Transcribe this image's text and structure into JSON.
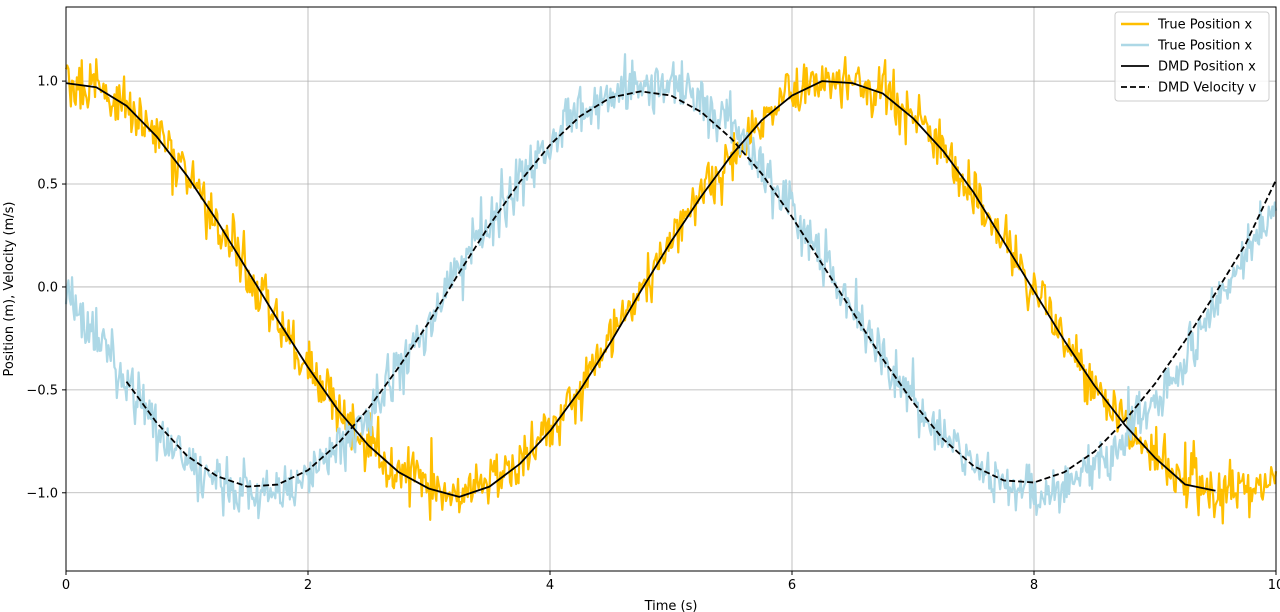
{
  "chart_data": {
    "type": "line",
    "title": "",
    "xlabel": "Time (s)",
    "ylabel": "Position (m), Velocity (m/s)",
    "xlim": [
      0,
      10
    ],
    "ylim": [
      -1.38,
      1.36
    ],
    "xticks": [
      0,
      2,
      4,
      6,
      8,
      10
    ],
    "yticks": [
      -1.0,
      -0.5,
      0.0,
      0.5,
      1.0
    ],
    "xtick_labels": [
      "0",
      "2",
      "4",
      "6",
      "8",
      "10"
    ],
    "ytick_labels": [
      "−1.0",
      "−0.5",
      "0.0",
      "0.5",
      "1.0"
    ],
    "grid": true,
    "legend_position": "top-right",
    "series": [
      {
        "name": "True Position x",
        "color": "#ffbf00",
        "style": "solid",
        "noisy": true,
        "x": [
          0,
          0.25,
          0.5,
          0.75,
          1,
          1.25,
          1.5,
          1.75,
          2,
          2.25,
          2.5,
          2.75,
          3,
          3.25,
          3.5,
          3.75,
          4,
          4.25,
          4.5,
          4.75,
          5,
          5.25,
          5.5,
          5.75,
          6,
          6.25,
          6.5,
          6.75,
          7,
          7.25,
          7.5,
          7.75,
          8,
          8.25,
          8.5,
          8.75,
          9,
          9.25,
          9.5,
          9.75,
          10
        ],
        "y": [
          1.0,
          0.97,
          0.88,
          0.73,
          0.54,
          0.32,
          0.08,
          -0.16,
          -0.39,
          -0.6,
          -0.77,
          -0.9,
          -0.98,
          -1.0,
          -0.96,
          -0.86,
          -0.7,
          -0.5,
          -0.27,
          -0.02,
          0.22,
          0.44,
          0.64,
          0.81,
          0.93,
          0.99,
          1.0,
          0.94,
          0.82,
          0.66,
          0.46,
          0.22,
          -0.02,
          -0.26,
          -0.48,
          -0.67,
          -0.83,
          -0.94,
          -0.99,
          -0.99,
          -0.92
        ]
      },
      {
        "name": "True Position x",
        "color": "#add8e6",
        "style": "solid",
        "noisy": true,
        "x": [
          0,
          0.25,
          0.5,
          0.75,
          1,
          1.25,
          1.5,
          1.75,
          2,
          2.25,
          2.5,
          2.75,
          3,
          3.25,
          3.5,
          3.75,
          4,
          4.25,
          4.5,
          4.75,
          5,
          5.25,
          5.5,
          5.75,
          6,
          6.25,
          6.5,
          6.75,
          7,
          7.25,
          7.5,
          7.75,
          8,
          8.25,
          8.5,
          8.75,
          9,
          9.25,
          9.5,
          9.75,
          10
        ],
        "y": [
          -0.02,
          -0.25,
          -0.48,
          -0.68,
          -0.84,
          -0.95,
          -1.0,
          -0.99,
          -0.92,
          -0.79,
          -0.62,
          -0.41,
          -0.18,
          0.06,
          0.3,
          0.52,
          0.7,
          0.85,
          0.95,
          0.99,
          0.98,
          0.9,
          0.77,
          0.6,
          0.39,
          0.15,
          -0.09,
          -0.33,
          -0.55,
          -0.73,
          -0.87,
          -0.96,
          -1.0,
          -0.97,
          -0.88,
          -0.74,
          -0.55,
          -0.33,
          -0.09,
          0.16,
          0.4
        ]
      },
      {
        "name": "DMD Position x",
        "color": "#000000",
        "style": "solid",
        "noisy": false,
        "x": [
          0,
          0.25,
          0.5,
          0.75,
          1,
          1.25,
          1.5,
          1.75,
          2,
          2.25,
          2.5,
          2.75,
          3,
          3.25,
          3.5,
          3.75,
          4,
          4.25,
          4.5,
          4.75,
          5,
          5.25,
          5.5,
          5.75,
          6,
          6.25,
          6.5,
          6.75,
          7,
          7.25,
          7.5,
          7.75,
          8,
          8.25,
          8.5,
          8.75,
          9,
          9.25,
          9.5
        ],
        "y": [
          0.99,
          0.97,
          0.88,
          0.73,
          0.54,
          0.32,
          0.08,
          -0.16,
          -0.39,
          -0.6,
          -0.77,
          -0.9,
          -0.98,
          -1.02,
          -0.97,
          -0.86,
          -0.7,
          -0.5,
          -0.27,
          -0.02,
          0.22,
          0.44,
          0.64,
          0.81,
          0.93,
          1.0,
          0.99,
          0.94,
          0.82,
          0.66,
          0.46,
          0.22,
          -0.02,
          -0.26,
          -0.48,
          -0.67,
          -0.83,
          -0.96,
          -0.99
        ]
      },
      {
        "name": "DMD Velocity v",
        "color": "#000000",
        "style": "dashed",
        "noisy": false,
        "x": [
          0.5,
          0.75,
          1,
          1.25,
          1.5,
          1.75,
          2,
          2.25,
          2.5,
          2.75,
          3,
          3.25,
          3.5,
          3.75,
          4,
          4.25,
          4.5,
          4.75,
          5,
          5.25,
          5.5,
          5.75,
          6,
          6.25,
          6.5,
          6.75,
          7,
          7.25,
          7.5,
          7.75,
          8,
          8.25,
          8.5,
          8.75,
          9,
          9.25,
          9.5,
          9.75,
          10
        ],
        "y": [
          -0.46,
          -0.66,
          -0.82,
          -0.92,
          -0.97,
          -0.96,
          -0.89,
          -0.76,
          -0.59,
          -0.39,
          -0.17,
          0.07,
          0.3,
          0.51,
          0.69,
          0.83,
          0.92,
          0.95,
          0.93,
          0.85,
          0.72,
          0.55,
          0.34,
          0.11,
          -0.12,
          -0.35,
          -0.56,
          -0.74,
          -0.87,
          -0.94,
          -0.95,
          -0.9,
          -0.8,
          -0.65,
          -0.47,
          -0.26,
          -0.03,
          0.21,
          0.52
        ]
      }
    ]
  }
}
